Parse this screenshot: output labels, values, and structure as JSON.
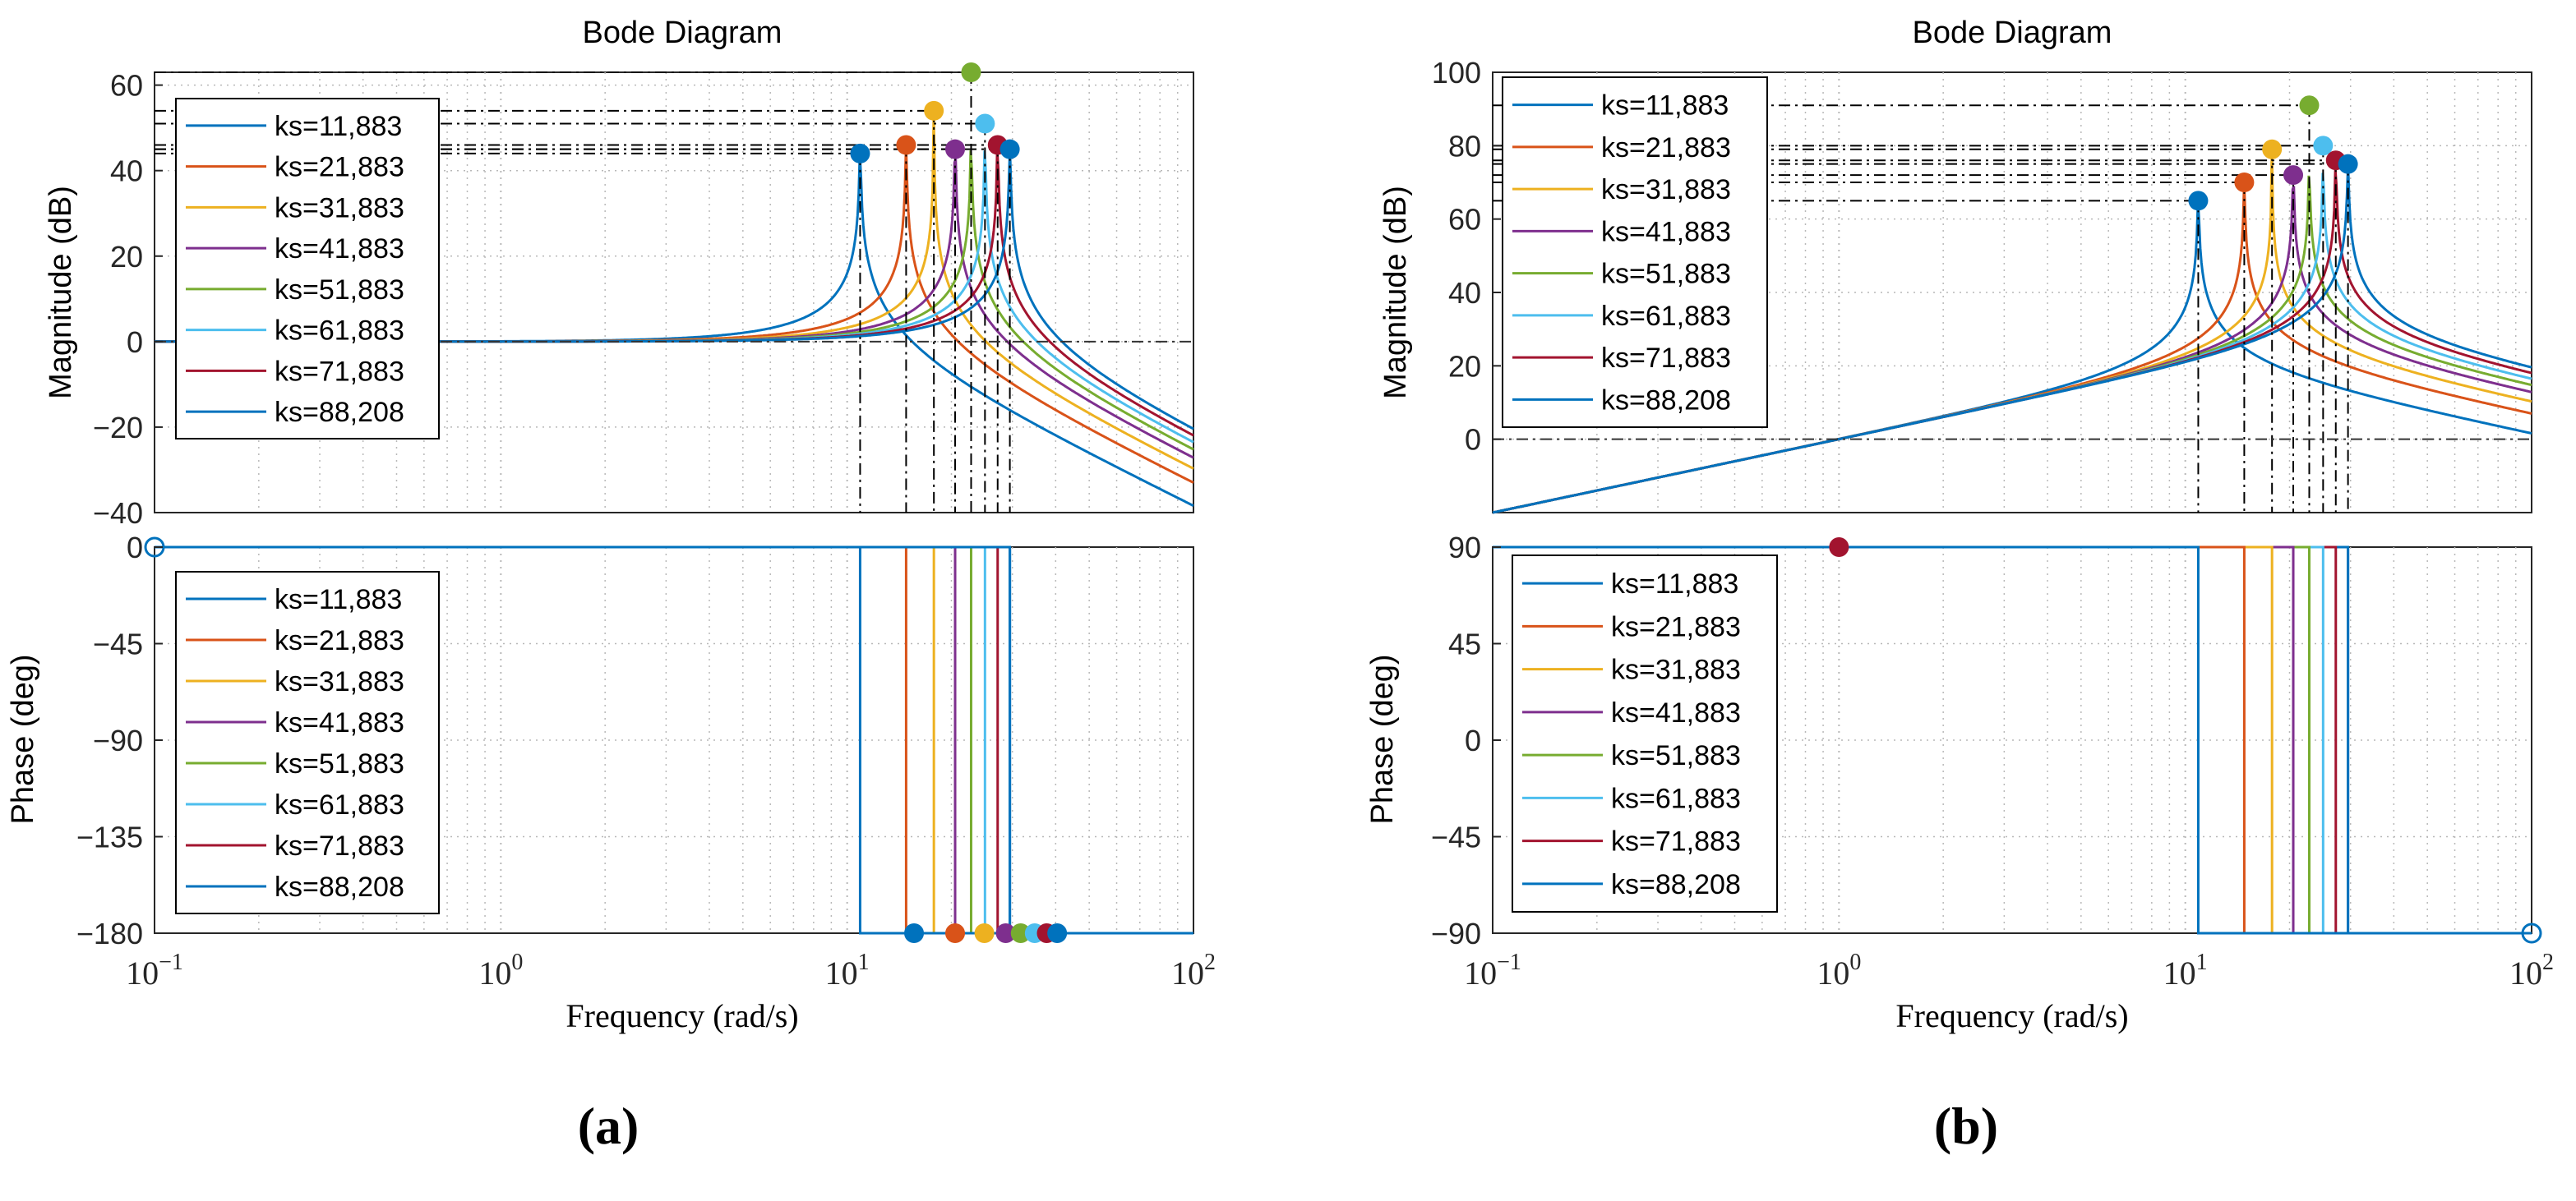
{
  "chart_data": [
    {
      "panel": "a",
      "type": "line",
      "title": "Bode Diagram",
      "xlabel": "Frequency  (rad/s)",
      "xscale": "log",
      "xlim": [
        0.1,
        100
      ],
      "x_ticks": [
        {
          "base": "10",
          "exp": "−1"
        },
        {
          "base": "10",
          "exp": "0"
        },
        {
          "base": "10",
          "exp": "1"
        },
        {
          "base": "10",
          "exp": "2"
        }
      ],
      "magnitude": {
        "ylabel": "Magnitude (dB)",
        "ylim": [
          -40,
          63
        ],
        "yticks": [
          "60",
          "40",
          "20",
          "0",
          "−20",
          "−40"
        ],
        "ytick_values": [
          60,
          40,
          20,
          0,
          -20,
          -40
        ],
        "legend_loc": "upper-left",
        "peaks": [
          {
            "name": "ks=11,883",
            "frequency_rad_s": 10.9,
            "peak_db": 44
          },
          {
            "name": "ks=21,883",
            "frequency_rad_s": 14.8,
            "peak_db": 46
          },
          {
            "name": "ks=31,883",
            "frequency_rad_s": 17.8,
            "peak_db": 54
          },
          {
            "name": "ks=41,883",
            "frequency_rad_s": 20.5,
            "peak_db": 45
          },
          {
            "name": "ks=51,883",
            "frequency_rad_s": 22.8,
            "peak_db": 63
          },
          {
            "name": "ks=61,883",
            "frequency_rad_s": 25.0,
            "peak_db": 51
          },
          {
            "name": "ks=71,883",
            "frequency_rad_s": 27.2,
            "peak_db": 46
          },
          {
            "name": "ks=88,208",
            "frequency_rad_s": 29.5,
            "peak_db": 45
          }
        ]
      },
      "phase": {
        "ylabel": "Phase (deg)",
        "ylim": [
          -180,
          0
        ],
        "yticks": [
          "0",
          "−45",
          "−90",
          "−135",
          "−180"
        ],
        "ytick_values": [
          0,
          -45,
          -90,
          -135,
          -180
        ],
        "legend_loc": "upper-left",
        "description": "Phase is 0 deg below resonance and jumps to -180 deg at each resonant frequency",
        "markers": [
          {
            "frequency_rad_s": 15.6,
            "phase_deg": -180
          },
          {
            "frequency_rad_s": 20.5,
            "phase_deg": -180
          },
          {
            "frequency_rad_s": 24.9,
            "phase_deg": -180
          },
          {
            "frequency_rad_s": 28.7,
            "phase_deg": -180
          },
          {
            "frequency_rad_s": 31.7,
            "phase_deg": -180
          },
          {
            "frequency_rad_s": 34.8,
            "phase_deg": -180
          },
          {
            "frequency_rad_s": 37.7,
            "phase_deg": -180
          },
          {
            "frequency_rad_s": 40.4,
            "phase_deg": -180
          }
        ],
        "open_marker": {
          "frequency_rad_s": 0.1,
          "phase_deg": 0
        }
      }
    },
    {
      "panel": "b",
      "type": "line",
      "title": "Bode Diagram",
      "xlabel": "Frequency  (rad/s)",
      "xscale": "log",
      "xlim": [
        0.1,
        100
      ],
      "x_ticks": [
        {
          "base": "10",
          "exp": "−1"
        },
        {
          "base": "10",
          "exp": "0"
        },
        {
          "base": "10",
          "exp": "1"
        },
        {
          "base": "10",
          "exp": "2"
        }
      ],
      "magnitude": {
        "ylabel": "Magnitude (dB)",
        "ylim": [
          -20,
          100
        ],
        "yticks": [
          "100",
          "80",
          "60",
          "40",
          "20",
          "0"
        ],
        "ytick_values": [
          100,
          80,
          60,
          40,
          20,
          0
        ],
        "legend_loc": "upper-left",
        "low_frequency_slope_db_per_decade": 20,
        "peaks": [
          {
            "name": "ks=11,883",
            "frequency_rad_s": 10.9,
            "peak_db": 65
          },
          {
            "name": "ks=21,883",
            "frequency_rad_s": 14.8,
            "peak_db": 70
          },
          {
            "name": "ks=31,883",
            "frequency_rad_s": 17.8,
            "peak_db": 79
          },
          {
            "name": "ks=41,883",
            "frequency_rad_s": 20.5,
            "peak_db": 72
          },
          {
            "name": "ks=51,883",
            "frequency_rad_s": 22.8,
            "peak_db": 91
          },
          {
            "name": "ks=61,883",
            "frequency_rad_s": 25.0,
            "peak_db": 80
          },
          {
            "name": "ks=71,883",
            "frequency_rad_s": 27.2,
            "peak_db": 76
          },
          {
            "name": "ks=88,208",
            "frequency_rad_s": 29.5,
            "peak_db": 75
          }
        ]
      },
      "phase": {
        "ylabel": "Phase (deg)",
        "ylim": [
          -90,
          90
        ],
        "yticks": [
          "90",
          "45",
          "0",
          "−45",
          "−90"
        ],
        "ytick_values": [
          90,
          45,
          0,
          -45,
          -90
        ],
        "legend_loc": "upper-left",
        "description": "Phase is +90 deg below resonance and jumps to -90 deg at each resonant frequency",
        "markers": [
          {
            "frequency_rad_s": 1.0,
            "phase_deg": 90
          }
        ],
        "open_marker": {
          "frequency_rad_s": 100,
          "phase_deg": -90
        }
      }
    }
  ],
  "series": [
    {
      "name": "ks=11,883",
      "color": "#0072BD"
    },
    {
      "name": "ks=21,883",
      "color": "#D95319"
    },
    {
      "name": "ks=31,883",
      "color": "#EDB120"
    },
    {
      "name": "ks=41,883",
      "color": "#7E2F8E"
    },
    {
      "name": "ks=51,883",
      "color": "#77AC30"
    },
    {
      "name": "ks=61,883",
      "color": "#4DBEEE"
    },
    {
      "name": "ks=71,883",
      "color": "#A2142F"
    },
    {
      "name": "ks=88,208",
      "color": "#0072BD"
    }
  ],
  "colors": {
    "phase_a_markers": [
      "#0072BD",
      "#D95319",
      "#EDB120",
      "#7E2F8E",
      "#77AC30",
      "#4DBEEE",
      "#A2142F",
      "#0072BD"
    ],
    "phase_b_marker": "#A2142F",
    "open_marker": "#0072BD",
    "axis": "#262626",
    "grid": "#b8b8b8"
  },
  "captions": {
    "a": "(a)",
    "b": "(b)"
  }
}
